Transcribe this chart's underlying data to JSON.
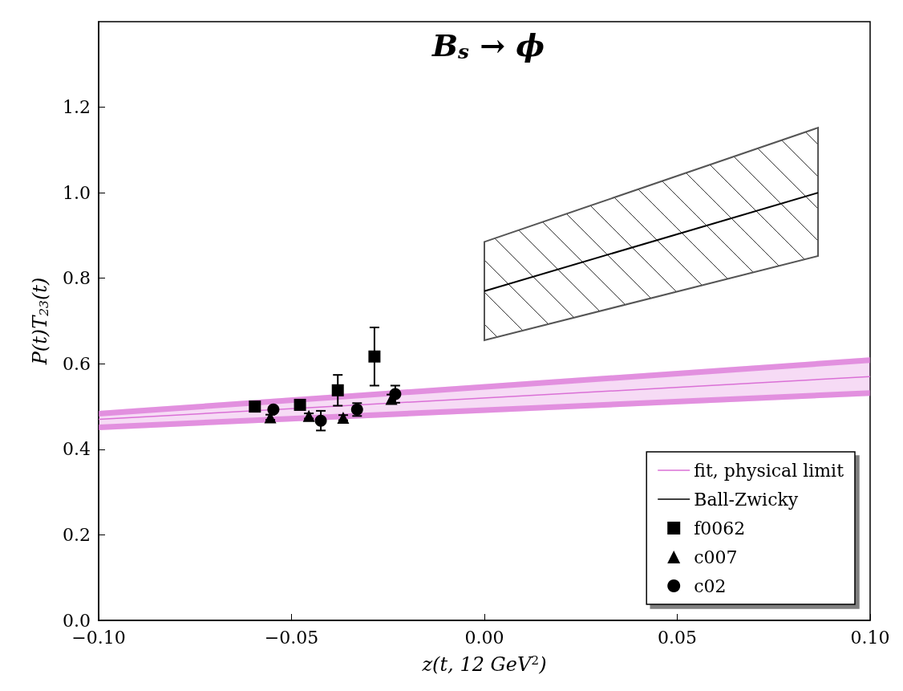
{
  "chart_data": {
    "type": "line",
    "title": "B$_{s}$ → ϕ",
    "xlabel": "z(t, 12 GeV$^{2}$)",
    "ylabel": "P(t)T$_{23}$(t)",
    "xlim": [
      -0.1,
      0.1
    ],
    "ylim": [
      0,
      1.4
    ],
    "xticks": [
      {
        "value": -0.1,
        "label": "−0.10"
      },
      {
        "value": -0.05,
        "label": "−0.05"
      },
      {
        "value": 0,
        "label": "0.00"
      },
      {
        "value": 0.05,
        "label": "0.05"
      },
      {
        "value": 0.1,
        "label": "0.10"
      }
    ],
    "yticks": [
      {
        "value": 0,
        "label": "0.0"
      },
      {
        "value": 0.2,
        "label": "0.2"
      },
      {
        "value": 0.4,
        "label": "0.4"
      },
      {
        "value": 0.6,
        "label": "0.6"
      },
      {
        "value": 0.8,
        "label": "0.8"
      },
      {
        "value": 1.0,
        "label": "1.0"
      },
      {
        "value": 1.2,
        "label": "1.2"
      }
    ],
    "grid": false,
    "legend": "bottom right",
    "series": [
      {
        "name": "fit, physical limit",
        "color": "#da70d6",
        "x": [
          -0.1,
          0.1
        ],
        "values": [
          0.47,
          0.57
        ],
        "lower": [
          0.445,
          0.525
        ],
        "upper": [
          0.49,
          0.615
        ]
      },
      {
        "name": "Ball-Zwicky",
        "color": "#000000",
        "x": [
          0,
          0.0865
        ],
        "values": [
          0.77,
          1.0
        ],
        "lower": [
          0.655,
          0.852
        ],
        "upper": [
          0.885,
          1.152
        ]
      },
      {
        "name": "f0062",
        "type": "scatter",
        "marker": "square",
        "color": "#000000",
        "x": [
          -0.0595,
          -0.0478,
          -0.038,
          -0.0285
        ],
        "values": [
          0.5,
          0.504,
          0.538,
          0.617
        ],
        "errors": [
          0.005,
          0.006,
          0.036,
          0.068
        ]
      },
      {
        "name": "c007",
        "type": "scatter",
        "marker": "triangle",
        "color": "#000000",
        "x": [
          -0.0555,
          -0.0455,
          -0.0366,
          -0.0241
        ],
        "values": [
          0.475,
          0.478,
          0.474,
          0.518
        ],
        "errors": [
          0.006,
          0.006,
          0.006,
          0.01
        ]
      },
      {
        "name": "c02",
        "type": "scatter",
        "marker": "circle",
        "color": "#000000",
        "x": [
          -0.0547,
          -0.0424,
          -0.033,
          -0.0231
        ],
        "values": [
          0.493,
          0.467,
          0.493,
          0.529
        ],
        "errors": [
          0.006,
          0.023,
          0.015,
          0.02
        ]
      }
    ]
  }
}
